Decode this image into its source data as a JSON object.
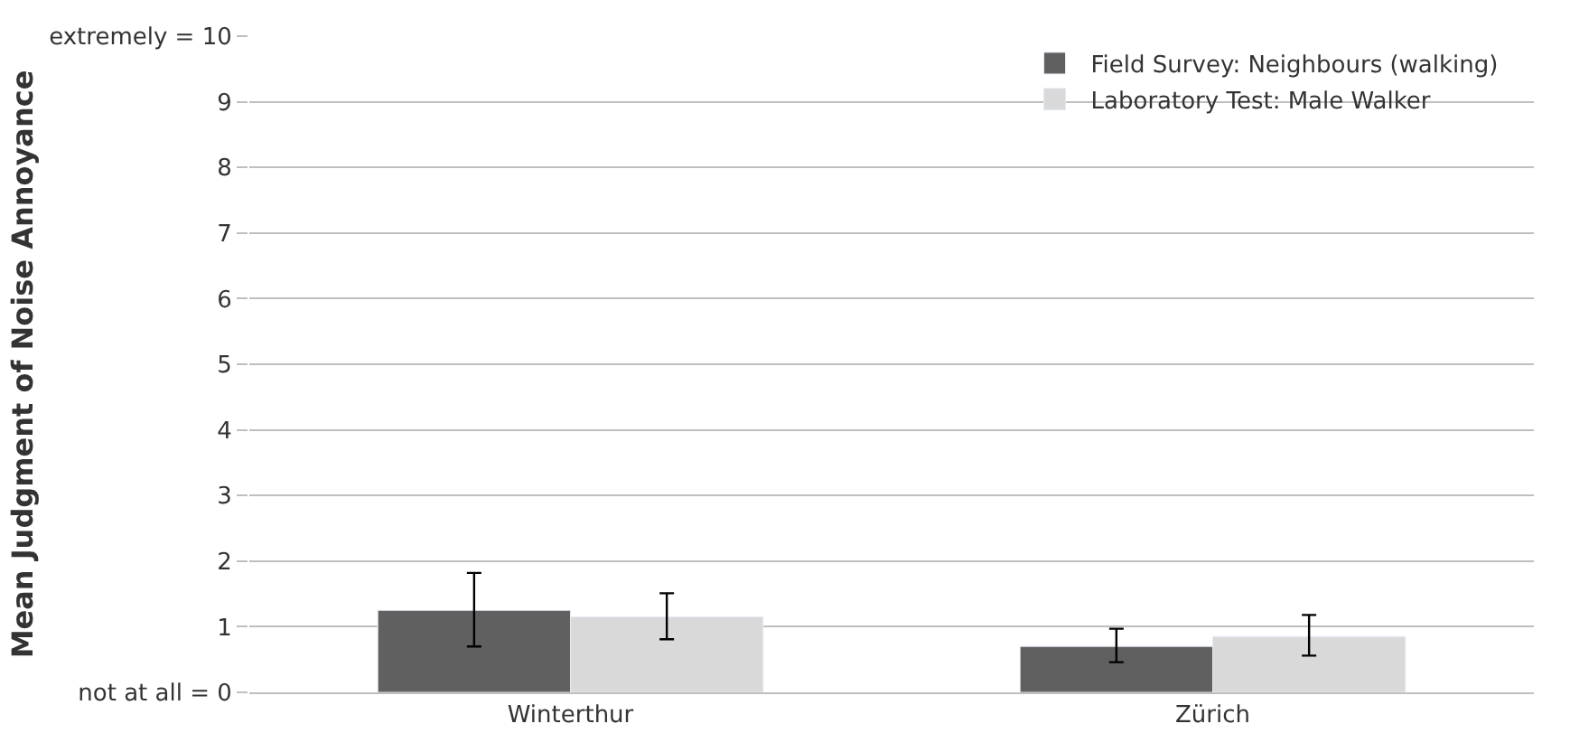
{
  "chart_data": {
    "type": "bar",
    "ylabel": "Mean Judgment of Noise Annoyance",
    "categories": [
      "Winterthur",
      "Zürich"
    ],
    "series": [
      {
        "name": "Field Survey: Neighbours (walking)",
        "color": "#606060",
        "values": [
          1.25,
          0.7
        ],
        "errors": [
          [
            0.7,
            1.82
          ],
          [
            0.46,
            0.97
          ]
        ]
      },
      {
        "name": "Laboratory Test: Male Walker",
        "color": "#d9d9d9",
        "values": [
          1.15,
          0.85
        ],
        "errors": [
          [
            0.81,
            1.51
          ],
          [
            0.56,
            1.18
          ]
        ]
      }
    ],
    "ylim": [
      0,
      10
    ],
    "yticks": [
      {
        "value": 0,
        "label": "not at all = 0"
      },
      1,
      2,
      3,
      4,
      5,
      6,
      7,
      8,
      9,
      {
        "value": 10,
        "label": "extremely = 10"
      }
    ],
    "grid": "y",
    "legend": "top right"
  }
}
